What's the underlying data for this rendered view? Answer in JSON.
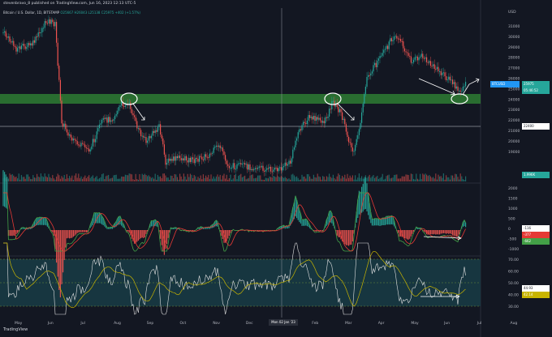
{
  "header": {
    "published": "stevenbravo_8 published on TradingView.com, Jun 16, 2023 12:13 UTC-5"
  },
  "legend": {
    "symbol": "Bitcoin / U.S. Dollar, 1D, BITSTAMP",
    "values": "O25667 H26043 L25138 C25975 +402 (+1.57%)"
  },
  "axis": {
    "currency": "USD",
    "price_ticks": [
      "31000",
      "30000",
      "29000",
      "28000",
      "27000",
      "26000",
      "25000",
      "24000",
      "23000",
      "22000",
      "21000",
      "20000",
      "19000"
    ],
    "macd_ticks": [
      "2000",
      "1500",
      "1000",
      "500",
      "0",
      "-500",
      "-1000"
    ],
    "rsi_ticks": [
      "70.00",
      "60.00",
      "50.00",
      "40.00",
      "30.00"
    ],
    "months": [
      "May",
      "Jun",
      "Jul",
      "Aug",
      "Sep",
      "Oct",
      "Nov",
      "Dec",
      "2023",
      "Feb",
      "Mar",
      "Apr",
      "May",
      "Jun",
      "Jul",
      "Aug"
    ]
  },
  "labels": {
    "btc_tag": "BTCUSD",
    "price_now": "25975",
    "countdown": "05:46:52",
    "h_price": "22400",
    "vol": "1.996K",
    "macd_a": "-116",
    "macd_b": "-377",
    "macd_c": "-662",
    "rsi_a": "44.93",
    "rsi_b": "42.14",
    "cursor_date": "Mon 02 Jan '23",
    "logo": "TradingView"
  },
  "colors": {
    "up": "#26a69a",
    "down": "#ef5350",
    "zone": "#2e7d32",
    "macd": "#43a047",
    "signal": "#e53935",
    "rsi": "#e0e0e0",
    "rsi_ma": "#c8b400",
    "rsi_band": "#1a3a44"
  }
}
